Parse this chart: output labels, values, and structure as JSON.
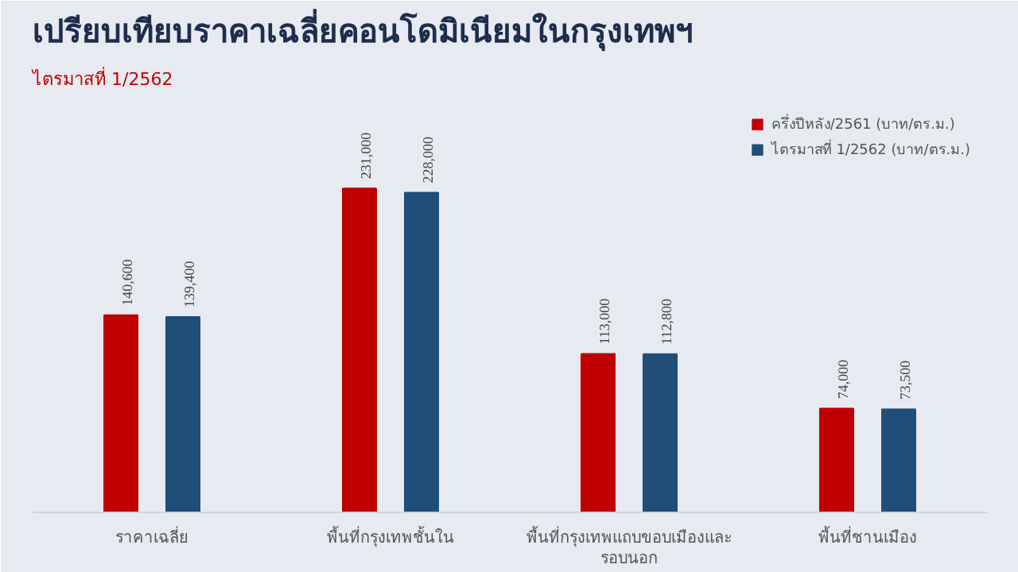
{
  "chart_data": {
    "type": "bar",
    "title": "เปรียบเทียบราคาเฉลี่ยคอนโดมิเนียมในกรุงเทพฯ",
    "subtitle": "ไตรมาสที่ 1/2562",
    "categories": [
      "ราคาเฉลี่ย",
      "พื้นที่กรุงเทพชั้นใน",
      "พื้นที่กรุงเทพแถบขอบเมืองและรอบนอก",
      "พื้นที่ชานเมือง"
    ],
    "series": [
      {
        "name": "ครึ่งปีหลัง/2561 (บาท/ตร.ม.)",
        "color": "#c00000",
        "values": [
          140600,
          231000,
          113000,
          74000
        ],
        "value_labels": [
          "140,600",
          "231,000",
          "113,000",
          "74,000"
        ]
      },
      {
        "name": "ไตรมาสที่ 1/2562 (บาท/ตร.ม.)",
        "color": "#1f4e79",
        "values": [
          139400,
          228000,
          112800,
          73500
        ],
        "value_labels": [
          "139,400",
          "228,000",
          "112,800",
          "73,500"
        ]
      }
    ],
    "legend": "top right",
    "grid": false
  }
}
